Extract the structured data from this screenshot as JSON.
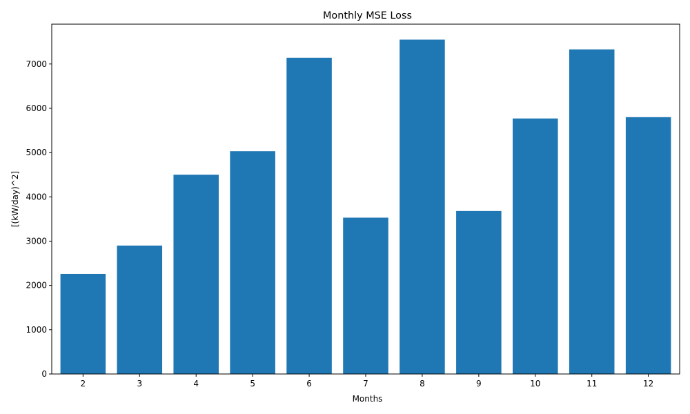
{
  "chart_data": {
    "type": "bar",
    "title": "Monthly MSE Loss",
    "xlabel": "Months",
    "ylabel": "[(kW/day)^2]",
    "categories": [
      "2",
      "3",
      "4",
      "5",
      "6",
      "7",
      "8",
      "9",
      "10",
      "11",
      "12"
    ],
    "values": [
      2260,
      2900,
      4500,
      5030,
      7140,
      3530,
      7550,
      3680,
      5770,
      7330,
      5800
    ],
    "ylim": [
      0,
      7900
    ],
    "yticks": [
      0,
      1000,
      2000,
      3000,
      4000,
      5000,
      6000,
      7000
    ],
    "bar_color": "#1f77b4",
    "grid": false,
    "legend": "none"
  }
}
